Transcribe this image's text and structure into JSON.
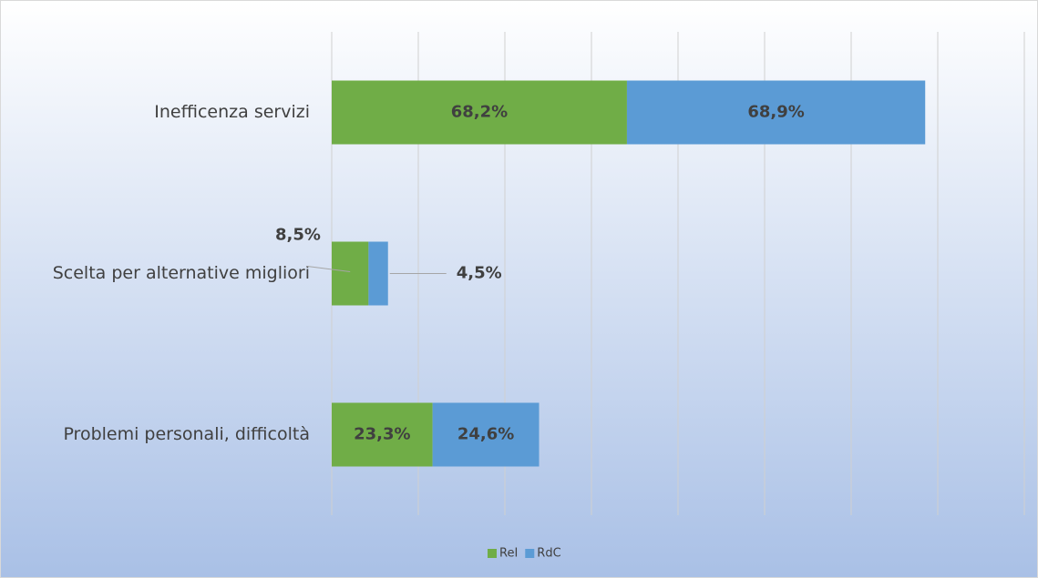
{
  "chart_data": {
    "type": "stacked-barh",
    "categories": [
      "Inefficenza servizi",
      "Scelta per alternative migliori",
      "Problemi personali, difficoltà"
    ],
    "series": [
      {
        "name": "ReI",
        "color": "#70ad47",
        "values": [
          68.2,
          8.5,
          23.3
        ],
        "value_labels": [
          "68,2%",
          "8,5%",
          "23,3%"
        ]
      },
      {
        "name": "RdC",
        "color": "#5b9bd5",
        "values": [
          68.9,
          4.5,
          24.6
        ],
        "value_labels": [
          "68,9%",
          "4,5%",
          "24,6%"
        ]
      }
    ],
    "xlim": [
      0,
      160
    ],
    "xticks": [
      0,
      20,
      40,
      60,
      80,
      100,
      120,
      140,
      160
    ],
    "grid": true,
    "legend": "bottom"
  }
}
